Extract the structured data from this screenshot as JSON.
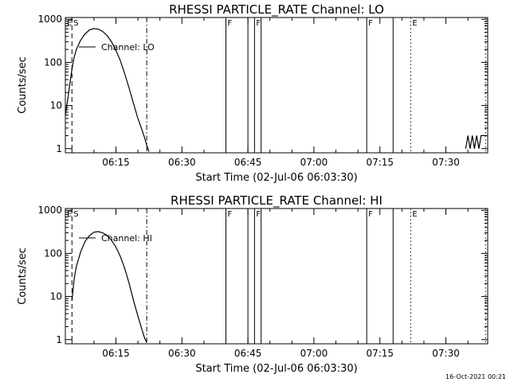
{
  "chart_data": [
    {
      "type": "line",
      "title": "RHESSI PARTICLE_RATE Channel: LO",
      "xlabel": "Start Time (02-Jul-06 06:03:30)",
      "ylabel": "Counts/sec",
      "xscale": "time",
      "xlim": [
        "06:03:30",
        "07:39:30"
      ],
      "yscale": "log",
      "ylim": [
        0.8,
        1100
      ],
      "xticks": [
        "06:15",
        "06:30",
        "06:45",
        "07:00",
        "07:15",
        "07:30"
      ],
      "yticks": [
        "1",
        "10",
        "100",
        "1000"
      ],
      "legend": "top-left",
      "grid": false,
      "series": [
        {
          "name": "Channel: LO",
          "x": [
            "06:03:30",
            "06:04:00",
            "06:04:30",
            "06:05:00",
            "06:05:30",
            "06:06:00",
            "06:07:00",
            "06:08:00",
            "06:09:00",
            "06:10:00",
            "06:11:00",
            "06:12:00",
            "06:13:00",
            "06:14:00",
            "06:15:00",
            "06:16:00",
            "06:17:00",
            "06:18:00",
            "06:19:00",
            "06:20:00",
            "06:21:00",
            "06:21:30",
            "06:22:00",
            "06:22:30"
          ],
          "y": [
            6,
            13,
            30,
            70,
            130,
            200,
            330,
            460,
            570,
            610,
            590,
            520,
            420,
            300,
            190,
            110,
            55,
            25,
            11,
            5,
            2.6,
            1.8,
            1.2,
            0.85
          ]
        },
        {
          "name": "",
          "x": [
            "07:34:30",
            "07:35:00",
            "07:35:30",
            "07:36:00",
            "07:36:30",
            "07:37:00",
            "07:37:30",
            "07:38:00",
            "07:39:00"
          ],
          "y": [
            1,
            2,
            1,
            2,
            1,
            2,
            1,
            2,
            2
          ]
        }
      ],
      "flags": [
        {
          "label": "E",
          "time": "06:03:30",
          "style": "none"
        },
        {
          "label": "S",
          "time": "06:05:00",
          "style": "dashed"
        },
        {
          "label": "",
          "time": "06:22:00",
          "style": "dashdot"
        },
        {
          "label": "F",
          "time": "06:40:00",
          "style": "solid"
        },
        {
          "label": "",
          "time": "06:45:00",
          "style": "solid"
        },
        {
          "label": "F",
          "time": "06:46:30",
          "style": "solid"
        },
        {
          "label": "",
          "time": "06:48:00",
          "style": "solid"
        },
        {
          "label": "F",
          "time": "07:12:00",
          "style": "solid"
        },
        {
          "label": "",
          "time": "07:18:00",
          "style": "solid"
        },
        {
          "label": "E",
          "time": "07:22:00",
          "style": "dotted"
        },
        {
          "label": "",
          "time": "07:39:00",
          "style": "dotted"
        }
      ]
    },
    {
      "type": "line",
      "title": "RHESSI PARTICLE_RATE Channel: HI",
      "xlabel": "Start Time (02-Jul-06 06:03:30)",
      "ylabel": "Counts/sec",
      "xscale": "time",
      "xlim": [
        "06:03:30",
        "07:39:30"
      ],
      "yscale": "log",
      "ylim": [
        0.8,
        1100
      ],
      "xticks": [
        "06:15",
        "06:30",
        "06:45",
        "07:00",
        "07:15",
        "07:30"
      ],
      "yticks": [
        "1",
        "10",
        "100",
        "1000"
      ],
      "legend": "top-left",
      "grid": false,
      "series": [
        {
          "name": "Channel: HI",
          "x": [
            "06:05:00",
            "06:05:30",
            "06:06:00",
            "06:07:00",
            "06:08:00",
            "06:09:00",
            "06:10:00",
            "06:11:00",
            "06:12:00",
            "06:13:00",
            "06:14:00",
            "06:15:00",
            "06:16:00",
            "06:17:00",
            "06:18:00",
            "06:19:00",
            "06:20:00",
            "06:21:00",
            "06:21:30",
            "06:22:00"
          ],
          "y": [
            8,
            25,
            50,
            110,
            190,
            260,
            310,
            320,
            300,
            260,
            200,
            140,
            85,
            45,
            20,
            8,
            3.5,
            1.6,
            1.1,
            0.85
          ]
        }
      ],
      "flags": [
        {
          "label": "E",
          "time": "06:03:30",
          "style": "none"
        },
        {
          "label": "S",
          "time": "06:05:00",
          "style": "dashed"
        },
        {
          "label": "",
          "time": "06:22:00",
          "style": "dashdot"
        },
        {
          "label": "F",
          "time": "06:40:00",
          "style": "solid"
        },
        {
          "label": "",
          "time": "06:45:00",
          "style": "solid"
        },
        {
          "label": "F",
          "time": "06:46:30",
          "style": "solid"
        },
        {
          "label": "",
          "time": "06:48:00",
          "style": "solid"
        },
        {
          "label": "F",
          "time": "07:12:00",
          "style": "solid"
        },
        {
          "label": "",
          "time": "07:18:00",
          "style": "solid"
        },
        {
          "label": "E",
          "time": "07:22:00",
          "style": "dotted"
        },
        {
          "label": "",
          "time": "07:39:00",
          "style": "dotted"
        }
      ]
    }
  ],
  "footer": {
    "timestamp": "16-Oct-2021 00:21"
  }
}
